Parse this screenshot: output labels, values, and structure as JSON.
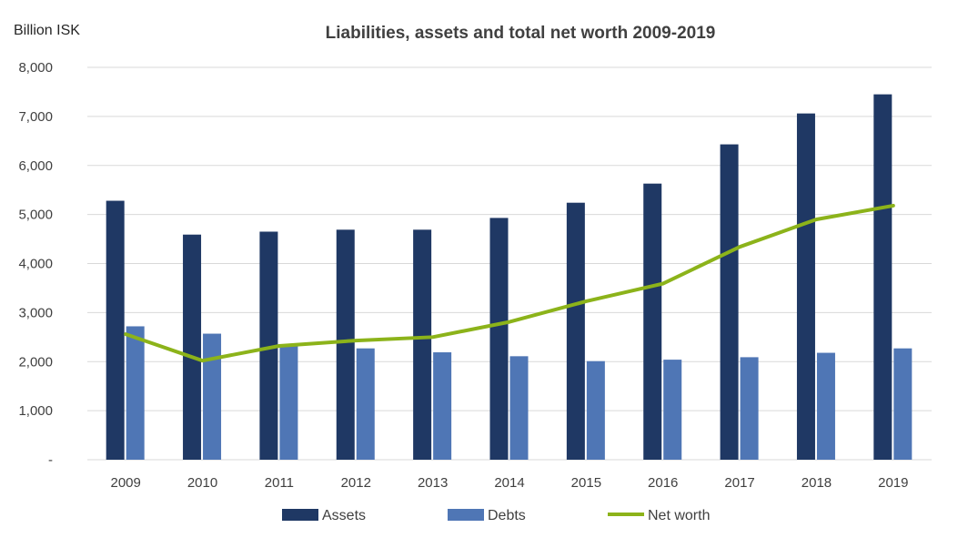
{
  "chart_data": {
    "type": "bar",
    "title": "Liabilities, assets and total net worth 2009-2019",
    "ylabel": "Billion ISK",
    "xlabel": "",
    "categories": [
      "2009",
      "2010",
      "2011",
      "2012",
      "2013",
      "2014",
      "2015",
      "2016",
      "2017",
      "2018",
      "2019"
    ],
    "ylim": [
      0,
      8000
    ],
    "yticks": [
      0,
      1000,
      2000,
      3000,
      4000,
      5000,
      6000,
      7000,
      8000
    ],
    "ytick_labels": [
      "-",
      "1,000",
      "2,000",
      "3,000",
      "4,000",
      "5,000",
      "6,000",
      "7,000",
      "8,000"
    ],
    "grid": "horizontal",
    "legend_position": "bottom",
    "series": [
      {
        "name": "Assets",
        "kind": "bar",
        "color": "#1f3864",
        "values": [
          5280,
          4590,
          4650,
          4690,
          4690,
          4930,
          5240,
          5630,
          6430,
          7060,
          7450
        ]
      },
      {
        "name": "Debts",
        "kind": "bar",
        "color": "#4f76b5",
        "values": [
          2720,
          2570,
          2330,
          2270,
          2190,
          2110,
          2010,
          2040,
          2090,
          2180,
          2270
        ]
      },
      {
        "name": "Net worth",
        "kind": "line",
        "color": "#8cb31a",
        "values": [
          2560,
          2020,
          2320,
          2430,
          2500,
          2810,
          3230,
          3590,
          4340,
          4900,
          5180
        ]
      }
    ]
  }
}
